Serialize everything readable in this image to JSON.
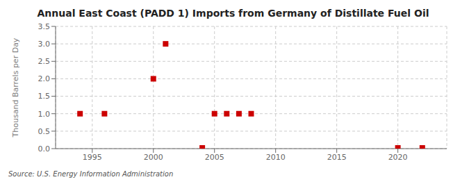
{
  "chart_data": {
    "type": "scatter",
    "title": "Annual East Coast (PADD 1) Imports from Germany of Distillate Fuel Oil",
    "ylabel": "Thousand Barrels per Day",
    "source": "Source: U.S. Energy Information Administration",
    "x": [
      1994,
      1996,
      2000,
      2001,
      2004,
      2005,
      2006,
      2007,
      2008,
      2020,
      2022
    ],
    "values": [
      1.0,
      1.0,
      2.0,
      3.0,
      0.02,
      1.0,
      1.0,
      1.0,
      1.0,
      0.02,
      0.02
    ],
    "color": "#cc0000",
    "marker": "square",
    "xlim": [
      1992,
      2024
    ],
    "xticks": [
      1995,
      2000,
      2005,
      2010,
      2015,
      2020
    ],
    "ylim": [
      0.0,
      3.5
    ],
    "yticks": [
      {
        "value": 0.0,
        "label": "0.0"
      },
      0.5,
      {
        "value": 1.0,
        "label": "1.0"
      },
      1.5,
      {
        "value": 2.0,
        "label": "2.0"
      },
      2.5,
      {
        "value": 3.0,
        "label": "3.0"
      },
      3.5
    ],
    "grid": true
  }
}
